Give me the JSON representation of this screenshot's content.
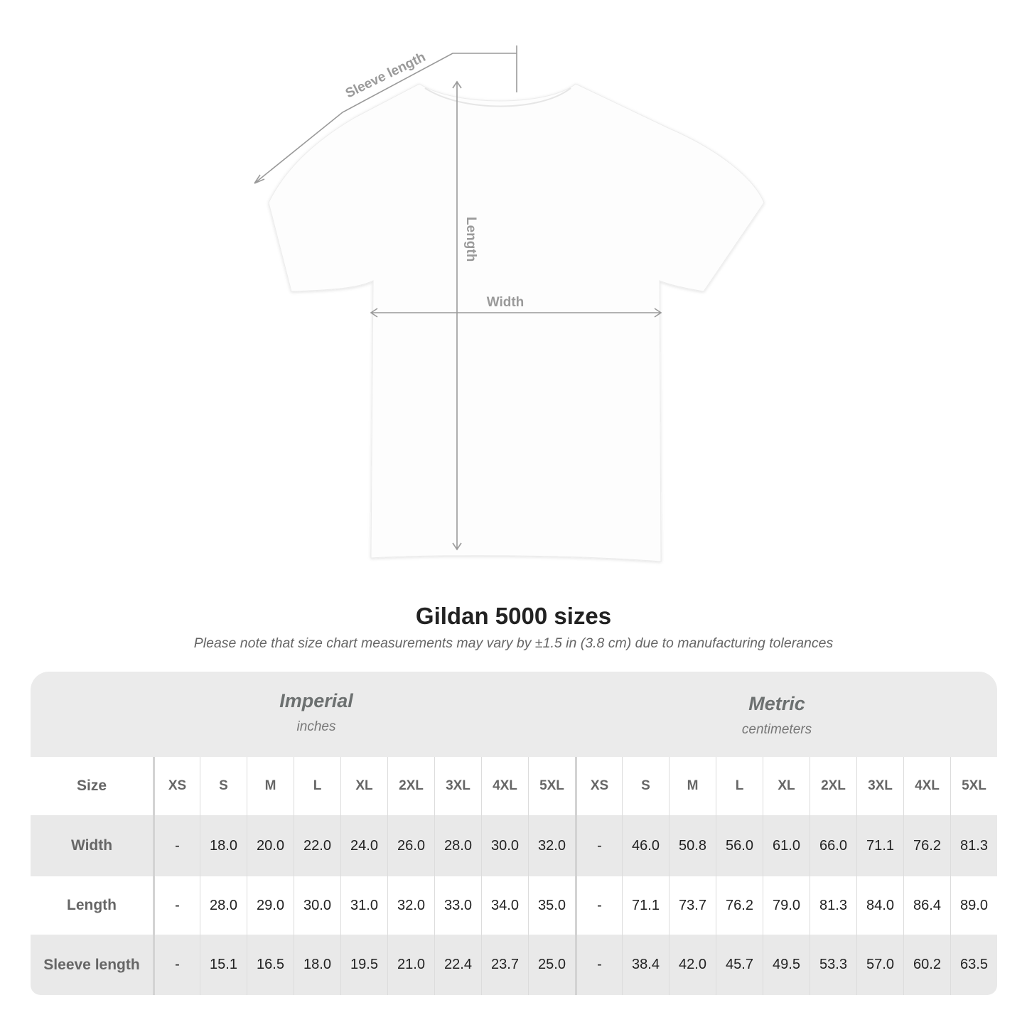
{
  "diagram": {
    "labels": {
      "sleeve": "Sleeve length",
      "length": "Length",
      "width": "Width"
    },
    "line_color": "#9a9a9a"
  },
  "header": {
    "title": "Gildan 5000 sizes",
    "subtitle": "Please note that size chart measurements may vary by ±1.5 in (3.8 cm) due to manufacturing tolerances"
  },
  "table": {
    "groups": [
      {
        "name": "Imperial",
        "unit": "inches"
      },
      {
        "name": "Metric",
        "unit": "centimeters"
      }
    ],
    "size_label": "Size",
    "sizes": [
      "XS",
      "S",
      "M",
      "L",
      "XL",
      "2XL",
      "3XL",
      "4XL",
      "5XL"
    ],
    "rows": [
      {
        "label": "Width",
        "imperial": [
          "-",
          "18.0",
          "20.0",
          "22.0",
          "24.0",
          "26.0",
          "28.0",
          "30.0",
          "32.0"
        ],
        "metric": [
          "-",
          "46.0",
          "50.8",
          "56.0",
          "61.0",
          "66.0",
          "71.1",
          "76.2",
          "81.3"
        ]
      },
      {
        "label": "Length",
        "imperial": [
          "-",
          "28.0",
          "29.0",
          "30.0",
          "31.0",
          "32.0",
          "33.0",
          "34.0",
          "35.0"
        ],
        "metric": [
          "-",
          "71.1",
          "73.7",
          "76.2",
          "79.0",
          "81.3",
          "84.0",
          "86.4",
          "89.0"
        ]
      },
      {
        "label": "Sleeve length",
        "imperial": [
          "-",
          "15.1",
          "16.5",
          "18.0",
          "19.5",
          "21.0",
          "22.4",
          "23.7",
          "25.0"
        ],
        "metric": [
          "-",
          "38.4",
          "42.0",
          "45.7",
          "49.5",
          "53.3",
          "57.0",
          "60.2",
          "63.5"
        ]
      }
    ],
    "colors": {
      "band": "#e9e9e9",
      "label_text": "#666666"
    }
  }
}
